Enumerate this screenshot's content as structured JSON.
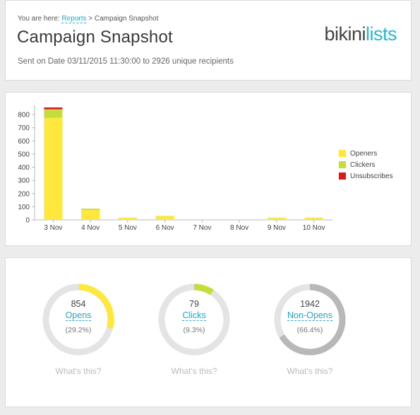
{
  "header": {
    "breadcrumb_prefix": "You are here:",
    "breadcrumb_link": "Reports",
    "breadcrumb_sep": ">",
    "breadcrumb_current": "Campaign Snapshot",
    "title": "Campaign Snapshot",
    "sent_info": "Sent on Date 03/11/2015 11:30:00 to 2926 unique recipients",
    "logo_part1": "bikini",
    "logo_part2": "lists"
  },
  "chart_data": {
    "type": "bar",
    "stacked": true,
    "categories": [
      "3 Nov",
      "4 Nov",
      "5 Nov",
      "6 Nov",
      "7 Nov",
      "8 Nov",
      "9 Nov",
      "10 Nov"
    ],
    "series": [
      {
        "name": "Openers",
        "color": "#ffe83d",
        "values": [
          775,
          75,
          15,
          28,
          0,
          0,
          15,
          15
        ]
      },
      {
        "name": "Clickers",
        "color": "#c4dc3c",
        "values": [
          65,
          10,
          2,
          2,
          0,
          0,
          2,
          2
        ]
      },
      {
        "name": "Unsubscribes",
        "color": "#d7191c",
        "values": [
          14,
          0,
          0,
          0,
          0,
          0,
          0,
          0
        ]
      }
    ],
    "yticks": [
      0,
      100,
      200,
      300,
      400,
      500,
      600,
      700,
      800
    ],
    "ylim": [
      0,
      870
    ],
    "legend_position": "right"
  },
  "stats": [
    {
      "value": "854",
      "label": "Opens",
      "percent": "(29.2%)",
      "fraction": 0.292,
      "color": "#ffe83d",
      "help": "What's this?"
    },
    {
      "value": "79",
      "label": "Clicks",
      "percent": "(9.3%)",
      "fraction": 0.093,
      "color": "#c4dc3c",
      "help": "What's this?"
    },
    {
      "value": "1942",
      "label": "Non-Opens",
      "percent": "(66.4%)",
      "fraction": 0.664,
      "color": "#b8b8b8",
      "help": "What's this?"
    }
  ]
}
